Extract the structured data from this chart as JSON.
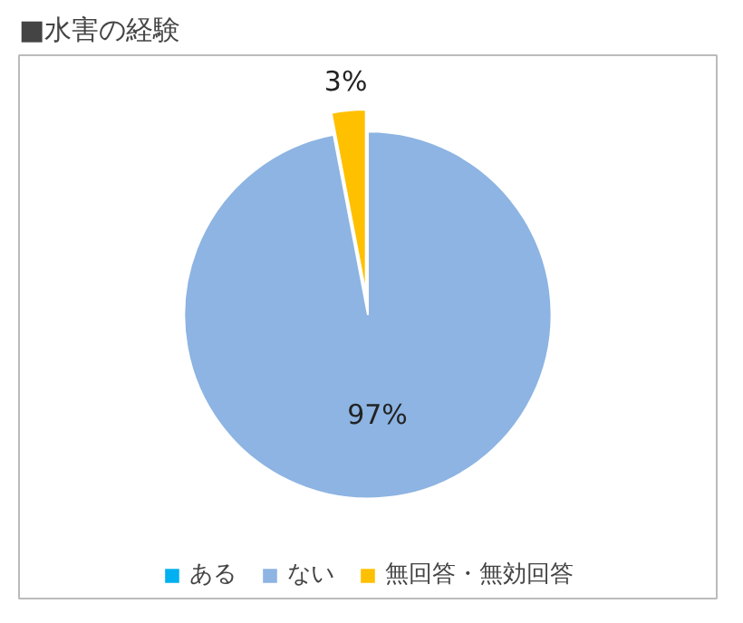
{
  "chart_data": {
    "type": "pie",
    "title": "■水害の経験",
    "categories": [
      "ある",
      "ない",
      "無回答・無効回答"
    ],
    "values": [
      0,
      97,
      3
    ],
    "colors": [
      "#00b0f0",
      "#8db4e2",
      "#ffc000"
    ],
    "value_labels": [
      null,
      "97%",
      "3%"
    ],
    "legend": "bottom"
  }
}
